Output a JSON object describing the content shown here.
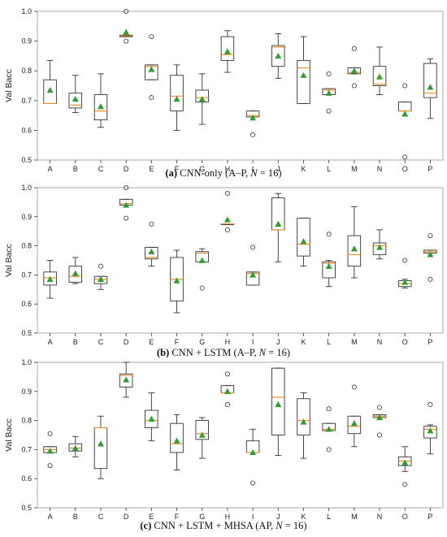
{
  "chart_data": [
    {
      "type": "box",
      "caption": {
        "label": "(a)",
        "text": "CNN-only (A–P, ",
        "n_symbol": "N",
        "n_text": " = 16)"
      },
      "ylabel": "Val Bacc",
      "ylim": [
        0.5,
        1.0
      ],
      "yticks": [
        "0.5",
        "0.6",
        "0.7",
        "0.8",
        "0.9",
        "1.0"
      ],
      "categories": [
        "A",
        "B",
        "C",
        "D",
        "E",
        "F",
        "G",
        "H",
        "I",
        "J",
        "K",
        "L",
        "M",
        "N",
        "O",
        "P"
      ],
      "boxes": [
        {
          "q1": 0.69,
          "q3": 0.77,
          "median": 0.69,
          "mean": 0.735,
          "wlo": 0.69,
          "whi": 0.835,
          "fliers": []
        },
        {
          "q1": 0.675,
          "q3": 0.725,
          "median": 0.685,
          "mean": 0.705,
          "wlo": 0.66,
          "whi": 0.785,
          "fliers": []
        },
        {
          "q1": 0.635,
          "q3": 0.72,
          "median": 0.665,
          "mean": 0.68,
          "wlo": 0.61,
          "whi": 0.79,
          "fliers": []
        },
        {
          "q1": 0.915,
          "q3": 0.92,
          "median": 0.918,
          "mean": 0.93,
          "wlo": 0.915,
          "whi": 0.92,
          "fliers": [
            1.0,
            0.9
          ]
        },
        {
          "q1": 0.77,
          "q3": 0.82,
          "median": 0.815,
          "mean": 0.805,
          "wlo": 0.77,
          "whi": 0.82,
          "fliers": [
            0.915,
            0.71
          ]
        },
        {
          "q1": 0.665,
          "q3": 0.785,
          "median": 0.715,
          "mean": 0.705,
          "wlo": 0.6,
          "whi": 0.82,
          "fliers": []
        },
        {
          "q1": 0.695,
          "q3": 0.735,
          "median": 0.71,
          "mean": 0.705,
          "wlo": 0.62,
          "whi": 0.79,
          "fliers": []
        },
        {
          "q1": 0.835,
          "q3": 0.915,
          "median": 0.855,
          "mean": 0.865,
          "wlo": 0.795,
          "whi": 0.935,
          "fliers": []
        },
        {
          "q1": 0.645,
          "q3": 0.665,
          "median": 0.65,
          "mean": 0.642,
          "wlo": 0.645,
          "whi": 0.665,
          "fliers": [
            0.585
          ]
        },
        {
          "q1": 0.815,
          "q3": 0.885,
          "median": 0.88,
          "mean": 0.85,
          "wlo": 0.775,
          "whi": 0.925,
          "fliers": []
        },
        {
          "q1": 0.69,
          "q3": 0.835,
          "median": 0.81,
          "mean": 0.785,
          "wlo": 0.69,
          "whi": 0.915,
          "fliers": []
        },
        {
          "q1": 0.72,
          "q3": 0.74,
          "median": 0.735,
          "mean": 0.725,
          "wlo": 0.72,
          "whi": 0.74,
          "fliers": [
            0.79,
            0.665
          ]
        },
        {
          "q1": 0.79,
          "q3": 0.81,
          "median": 0.795,
          "mean": 0.8,
          "wlo": 0.79,
          "whi": 0.81,
          "fliers": [
            0.875,
            0.75
          ]
        },
        {
          "q1": 0.75,
          "q3": 0.815,
          "median": 0.755,
          "mean": 0.78,
          "wlo": 0.72,
          "whi": 0.88,
          "fliers": []
        },
        {
          "q1": 0.665,
          "q3": 0.695,
          "median": 0.665,
          "mean": 0.655,
          "wlo": 0.665,
          "whi": 0.695,
          "fliers": [
            0.75,
            0.51
          ]
        },
        {
          "q1": 0.71,
          "q3": 0.825,
          "median": 0.725,
          "mean": 0.745,
          "wlo": 0.64,
          "whi": 0.84,
          "fliers": []
        }
      ]
    },
    {
      "type": "box",
      "caption": {
        "label": "(b)",
        "text": "CNN + LSTM (A–P, ",
        "n_symbol": "N",
        "n_text": " = 16)"
      },
      "ylabel": "Val Bacc",
      "ylim": [
        0.5,
        1.0
      ],
      "yticks": [
        "0.5",
        "0.6",
        "0.7",
        "0.8",
        "0.9",
        "1.0"
      ],
      "categories": [
        "A",
        "B",
        "C",
        "D",
        "E",
        "F",
        "G",
        "H",
        "I",
        "J",
        "K",
        "L",
        "M",
        "N",
        "O",
        "P"
      ],
      "boxes": [
        {
          "q1": 0.665,
          "q3": 0.71,
          "median": 0.69,
          "mean": 0.685,
          "wlo": 0.62,
          "whi": 0.75,
          "fliers": []
        },
        {
          "q1": 0.675,
          "q3": 0.73,
          "median": 0.695,
          "mean": 0.705,
          "wlo": 0.67,
          "whi": 0.76,
          "fliers": []
        },
        {
          "q1": 0.67,
          "q3": 0.695,
          "median": 0.685,
          "mean": 0.685,
          "wlo": 0.65,
          "whi": 0.695,
          "fliers": [
            0.73
          ]
        },
        {
          "q1": 0.94,
          "q3": 0.96,
          "median": 0.945,
          "mean": 0.94,
          "wlo": 0.94,
          "whi": 0.96,
          "fliers": [
            1.0,
            0.895
          ]
        },
        {
          "q1": 0.755,
          "q3": 0.795,
          "median": 0.76,
          "mean": 0.78,
          "wlo": 0.73,
          "whi": 0.795,
          "fliers": [
            0.875
          ]
        },
        {
          "q1": 0.61,
          "q3": 0.76,
          "median": 0.685,
          "mean": 0.68,
          "wlo": 0.57,
          "whi": 0.785,
          "fliers": []
        },
        {
          "q1": 0.745,
          "q3": 0.78,
          "median": 0.775,
          "mean": 0.75,
          "wlo": 0.745,
          "whi": 0.79,
          "fliers": [
            0.655
          ]
        },
        {
          "q1": 0.875,
          "q3": 0.875,
          "median": 0.875,
          "mean": 0.89,
          "wlo": 0.875,
          "whi": 0.875,
          "fliers": [
            0.98,
            0.855
          ]
        },
        {
          "q1": 0.665,
          "q3": 0.71,
          "median": 0.705,
          "mean": 0.7,
          "wlo": 0.665,
          "whi": 0.71,
          "fliers": [
            0.795
          ]
        },
        {
          "q1": 0.855,
          "q3": 0.965,
          "median": 0.855,
          "mean": 0.875,
          "wlo": 0.745,
          "whi": 0.98,
          "fliers": []
        },
        {
          "q1": 0.765,
          "q3": 0.895,
          "median": 0.805,
          "mean": 0.815,
          "wlo": 0.73,
          "whi": 0.895,
          "fliers": []
        },
        {
          "q1": 0.69,
          "q3": 0.745,
          "median": 0.74,
          "mean": 0.73,
          "wlo": 0.66,
          "whi": 0.75,
          "fliers": [
            0.84
          ]
        },
        {
          "q1": 0.73,
          "q3": 0.835,
          "median": 0.77,
          "mean": 0.79,
          "wlo": 0.69,
          "whi": 0.935,
          "fliers": []
        },
        {
          "q1": 0.77,
          "q3": 0.81,
          "median": 0.8,
          "mean": 0.795,
          "wlo": 0.755,
          "whi": 0.855,
          "fliers": []
        },
        {
          "q1": 0.66,
          "q3": 0.68,
          "median": 0.67,
          "mean": 0.675,
          "wlo": 0.655,
          "whi": 0.685,
          "fliers": [
            0.75
          ]
        },
        {
          "q1": 0.775,
          "q3": 0.785,
          "median": 0.78,
          "mean": 0.77,
          "wlo": 0.775,
          "whi": 0.785,
          "fliers": [
            0.835,
            0.685
          ]
        }
      ]
    },
    {
      "type": "box",
      "caption": {
        "label": "(c)",
        "text": "CNN + LSTM + MHSA (AP, ",
        "n_symbol": "N",
        "n_text": " = 16)"
      },
      "ylabel": "Val Bacc",
      "ylim": [
        0.5,
        1.0
      ],
      "yticks": [
        "0.5",
        "0.6",
        "0.7",
        "0.8",
        "0.9",
        "1.0"
      ],
      "categories": [
        "A",
        "B",
        "C",
        "D",
        "E",
        "F",
        "G",
        "H",
        "I",
        "J",
        "K",
        "L",
        "M",
        "N",
        "O",
        "P"
      ],
      "boxes": [
        {
          "q1": 0.69,
          "q3": 0.71,
          "median": 0.7,
          "mean": 0.695,
          "wlo": 0.69,
          "whi": 0.71,
          "fliers": [
            0.755,
            0.645
          ]
        },
        {
          "q1": 0.695,
          "q3": 0.72,
          "median": 0.705,
          "mean": 0.705,
          "wlo": 0.675,
          "whi": 0.745,
          "fliers": []
        },
        {
          "q1": 0.635,
          "q3": 0.775,
          "median": 0.775,
          "mean": 0.72,
          "wlo": 0.6,
          "whi": 0.815,
          "fliers": []
        },
        {
          "q1": 0.915,
          "q3": 0.96,
          "median": 0.955,
          "mean": 0.94,
          "wlo": 0.88,
          "whi": 1.0,
          "fliers": []
        },
        {
          "q1": 0.775,
          "q3": 0.835,
          "median": 0.8,
          "mean": 0.805,
          "wlo": 0.73,
          "whi": 0.895,
          "fliers": []
        },
        {
          "q1": 0.69,
          "q3": 0.79,
          "median": 0.72,
          "mean": 0.73,
          "wlo": 0.63,
          "whi": 0.82,
          "fliers": []
        },
        {
          "q1": 0.735,
          "q3": 0.8,
          "median": 0.755,
          "mean": 0.75,
          "wlo": 0.67,
          "whi": 0.81,
          "fliers": []
        },
        {
          "q1": 0.895,
          "q3": 0.92,
          "median": 0.895,
          "mean": 0.9,
          "wlo": 0.895,
          "whi": 0.92,
          "fliers": [
            0.96,
            0.855
          ]
        },
        {
          "q1": 0.69,
          "q3": 0.73,
          "median": 0.69,
          "mean": 0.69,
          "wlo": 0.69,
          "whi": 0.77,
          "fliers": [
            0.585
          ]
        },
        {
          "q1": 0.75,
          "q3": 0.98,
          "median": 0.88,
          "mean": 0.855,
          "wlo": 0.68,
          "whi": 0.98,
          "fliers": []
        },
        {
          "q1": 0.75,
          "q3": 0.875,
          "median": 0.8,
          "mean": 0.795,
          "wlo": 0.67,
          "whi": 0.895,
          "fliers": []
        },
        {
          "q1": 0.765,
          "q3": 0.79,
          "median": 0.77,
          "mean": 0.77,
          "wlo": 0.765,
          "whi": 0.79,
          "fliers": [
            0.84,
            0.7
          ]
        },
        {
          "q1": 0.755,
          "q3": 0.815,
          "median": 0.78,
          "mean": 0.79,
          "wlo": 0.71,
          "whi": 0.815,
          "fliers": [
            0.915
          ]
        },
        {
          "q1": 0.81,
          "q3": 0.82,
          "median": 0.815,
          "mean": 0.81,
          "wlo": 0.81,
          "whi": 0.82,
          "fliers": [
            0.845,
            0.75
          ]
        },
        {
          "q1": 0.645,
          "q3": 0.675,
          "median": 0.66,
          "mean": 0.655,
          "wlo": 0.625,
          "whi": 0.71,
          "fliers": [
            0.58
          ]
        },
        {
          "q1": 0.74,
          "q3": 0.78,
          "median": 0.77,
          "mean": 0.765,
          "wlo": 0.685,
          "whi": 0.785,
          "fliers": [
            0.855
          ]
        }
      ]
    }
  ],
  "style": {
    "box_edge": "#333333",
    "median": "#f58518",
    "mean_marker": "#2ca02c",
    "flier_edge": "#333333",
    "frame": "#aaaaaa",
    "background": "#ffffff"
  }
}
